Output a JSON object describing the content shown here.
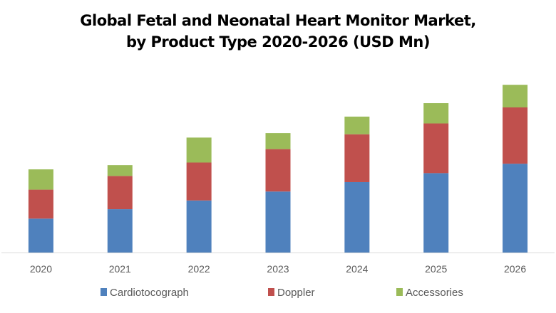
{
  "chart_data": {
    "type": "bar",
    "stacked": true,
    "title_line1": "Global Fetal and Neonatal Heart Monitor Market,",
    "title_line2": "by Product Type 2020-2026 (USD Mn)",
    "xlabel": "",
    "ylabel": "",
    "categories": [
      "2020",
      "2021",
      "2022",
      "2023",
      "2024",
      "2025",
      "2026"
    ],
    "series": [
      {
        "name": "Cardiotocograph",
        "color": "#4f81bd",
        "values": [
          144,
          184,
          221,
          259,
          299,
          337,
          377
        ]
      },
      {
        "name": "Doppler",
        "color": "#c0504d",
        "values": [
          123,
          141,
          161,
          180,
          203,
          211,
          239
        ]
      },
      {
        "name": "Accessories",
        "color": "#9bbb59",
        "values": [
          86,
          46,
          106,
          68,
          75,
          86,
          96
        ]
      }
    ],
    "ylim": [
      0,
      770
    ],
    "y_axis_shown": false,
    "grid": false,
    "legend_position": "bottom"
  }
}
